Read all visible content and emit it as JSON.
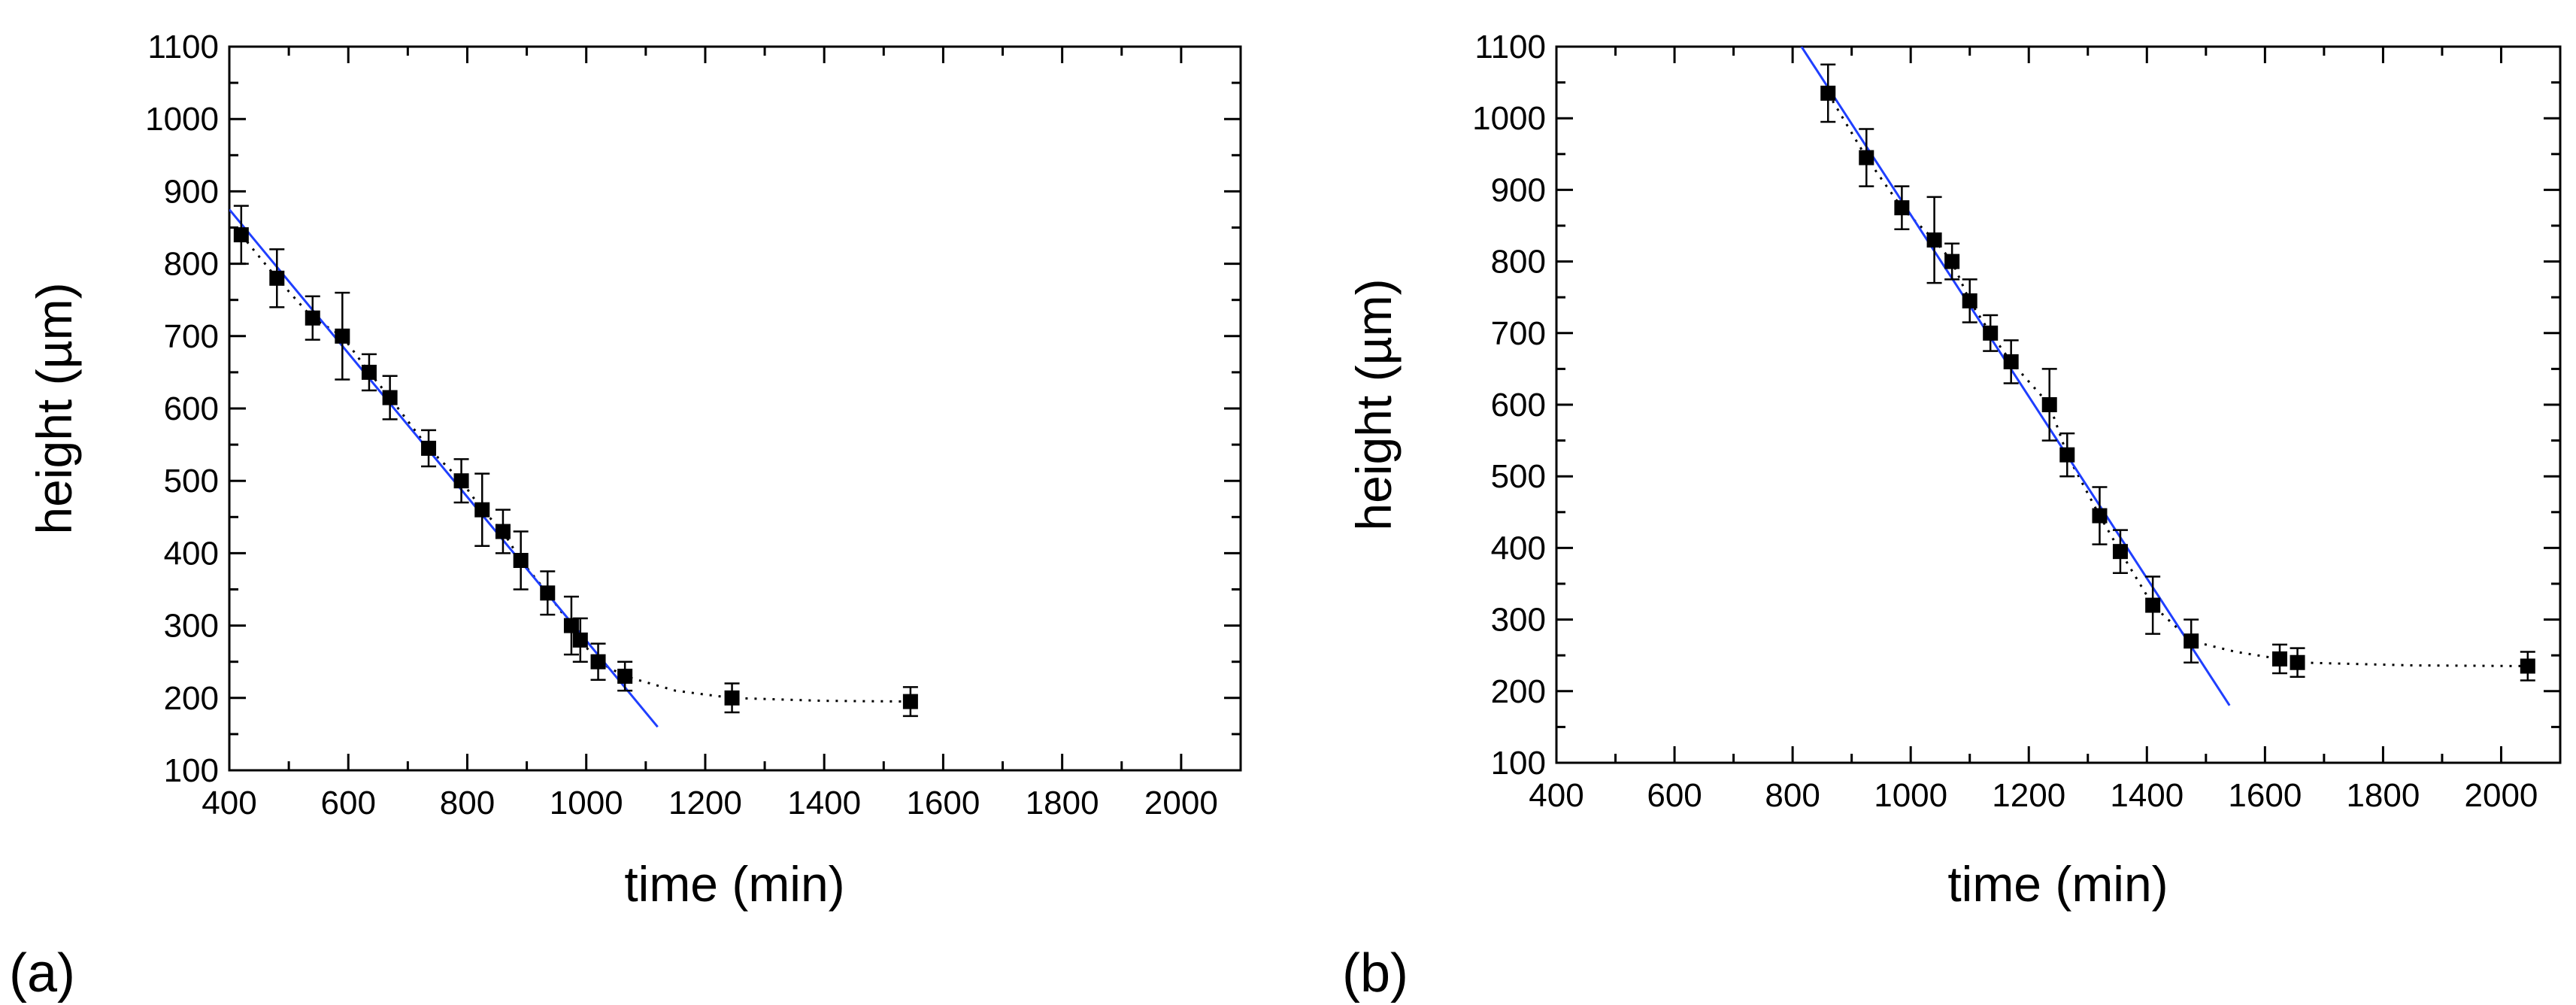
{
  "chart_data": [
    {
      "type": "scatter",
      "panel_label": "(a)",
      "xlabel": "time (min)",
      "ylabel": "height (µm)",
      "xlim": [
        400,
        2100
      ],
      "ylim": [
        100,
        1100
      ],
      "xticks": [
        400,
        600,
        800,
        1000,
        1200,
        1400,
        1600,
        1800,
        2000
      ],
      "yticks": [
        100,
        200,
        300,
        400,
        500,
        600,
        700,
        800,
        900,
        1000,
        1100
      ],
      "grid": false,
      "legend": "none",
      "colors": {
        "points": "#000000",
        "fit_line": "#1f3fff",
        "trend_line": "#000000"
      },
      "series": [
        {
          "kind": "points-with-error-bars",
          "x": [
            420,
            480,
            540,
            590,
            635,
            670,
            735,
            790,
            825,
            860,
            890,
            935,
            975,
            990,
            1020,
            1065,
            1245,
            1545
          ],
          "y": [
            840,
            780,
            725,
            700,
            650,
            615,
            545,
            500,
            460,
            430,
            390,
            345,
            300,
            280,
            250,
            230,
            200,
            195
          ],
          "err": [
            40,
            40,
            30,
            60,
            25,
            30,
            25,
            30,
            50,
            30,
            40,
            30,
            40,
            30,
            25,
            20,
            20,
            20
          ]
        },
        {
          "kind": "linear-fit",
          "x": [
            400,
            1120
          ],
          "y": [
            875,
            160
          ]
        },
        {
          "kind": "dotted-trend",
          "x": [
            420,
            480,
            540,
            590,
            635,
            670,
            735,
            790,
            825,
            860,
            890,
            935,
            975,
            990,
            1020,
            1065,
            1150,
            1245,
            1400,
            1545
          ],
          "y": [
            840,
            780,
            725,
            700,
            650,
            615,
            545,
            500,
            460,
            430,
            390,
            345,
            300,
            280,
            250,
            230,
            210,
            200,
            196,
            195
          ]
        }
      ]
    },
    {
      "type": "scatter",
      "panel_label": "(b)",
      "xlabel": "time (min)",
      "ylabel": "height (µm)",
      "xlim": [
        400,
        2100
      ],
      "ylim": [
        100,
        1100
      ],
      "xticks": [
        400,
        600,
        800,
        1000,
        1200,
        1400,
        1600,
        1800,
        2000
      ],
      "yticks": [
        100,
        200,
        300,
        400,
        500,
        600,
        700,
        800,
        900,
        1000,
        1100
      ],
      "grid": false,
      "legend": "none",
      "colors": {
        "points": "#000000",
        "fit_line": "#1f3fff",
        "trend_line": "#000000"
      },
      "series": [
        {
          "kind": "points-with-error-bars",
          "x": [
            860,
            925,
            985,
            1040,
            1070,
            1100,
            1135,
            1170,
            1235,
            1265,
            1320,
            1355,
            1410,
            1475,
            1625,
            1655,
            2045
          ],
          "y": [
            1035,
            945,
            875,
            830,
            800,
            745,
            700,
            660,
            600,
            530,
            445,
            395,
            320,
            270,
            245,
            240,
            235
          ],
          "err": [
            40,
            40,
            30,
            60,
            25,
            30,
            25,
            30,
            50,
            30,
            40,
            30,
            40,
            30,
            20,
            20,
            20
          ]
        },
        {
          "kind": "linear-fit",
          "x": [
            815,
            1540
          ],
          "y": [
            1100,
            180
          ]
        },
        {
          "kind": "dotted-trend",
          "x": [
            860,
            925,
            985,
            1040,
            1070,
            1100,
            1135,
            1170,
            1235,
            1265,
            1320,
            1355,
            1410,
            1475,
            1550,
            1625,
            1655,
            1850,
            2045
          ],
          "y": [
            1035,
            945,
            875,
            830,
            800,
            745,
            700,
            660,
            600,
            530,
            445,
            395,
            320,
            270,
            255,
            245,
            240,
            236,
            235
          ]
        }
      ]
    }
  ]
}
